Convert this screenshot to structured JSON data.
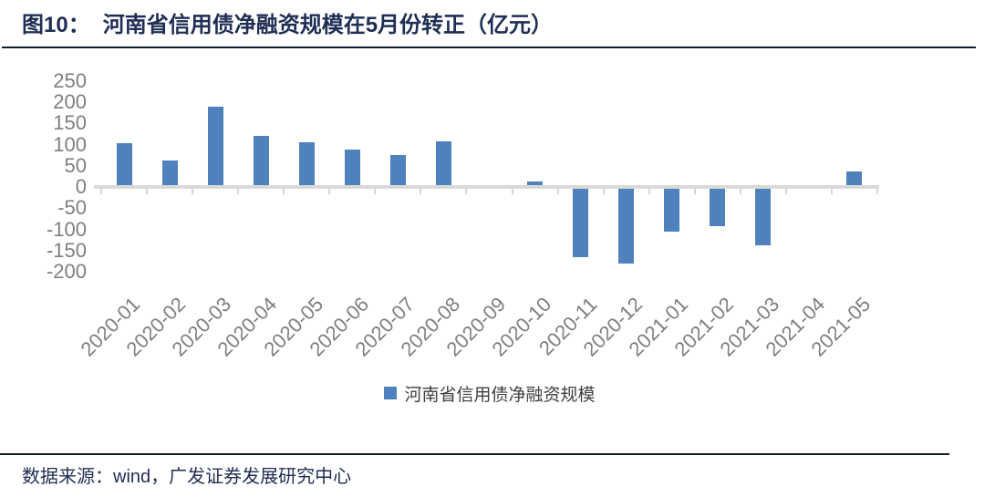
{
  "header": {
    "figure_label": "图10：",
    "title": "河南省信用债净融资规模在5月份转正（亿元）"
  },
  "chart_data": {
    "type": "bar",
    "title": "河南省信用债净融资规模在5月份转正（亿元）",
    "unit": "亿元",
    "categories": [
      "2020-01",
      "2020-02",
      "2020-03",
      "2020-04",
      "2020-05",
      "2020-06",
      "2020-07",
      "2020-08",
      "2020-09",
      "2020-10",
      "2020-11",
      "2020-12",
      "2021-01",
      "2021-02",
      "2021-03",
      "2021-04",
      "2021-05"
    ],
    "series": [
      {
        "name": "河南省信用债净融资规模",
        "values": [
          104,
          62,
          190,
          120,
          106,
          88,
          75,
          107,
          0,
          12,
          -166,
          -181,
          -105,
          -92,
          -138,
          0,
          37
        ]
      }
    ],
    "ylim": [
      -200,
      250
    ],
    "ytick_step": 50,
    "yticks": [
      250,
      200,
      150,
      100,
      50,
      0,
      -50,
      -100,
      -150,
      -200
    ],
    "grid": false,
    "legend_position": "bottom",
    "bar_color": "#4F81BD"
  },
  "legend": {
    "label": "河南省信用债净融资规模"
  },
  "footer": {
    "source": "数据来源：wind，广发证券发展研究中心"
  },
  "colors": {
    "bar": "#4F81BD",
    "axis_line": "#D9D9D9",
    "tick_label": "#7F7F7F",
    "title_text": "#1F2E54",
    "rule_line": "#131C33"
  }
}
